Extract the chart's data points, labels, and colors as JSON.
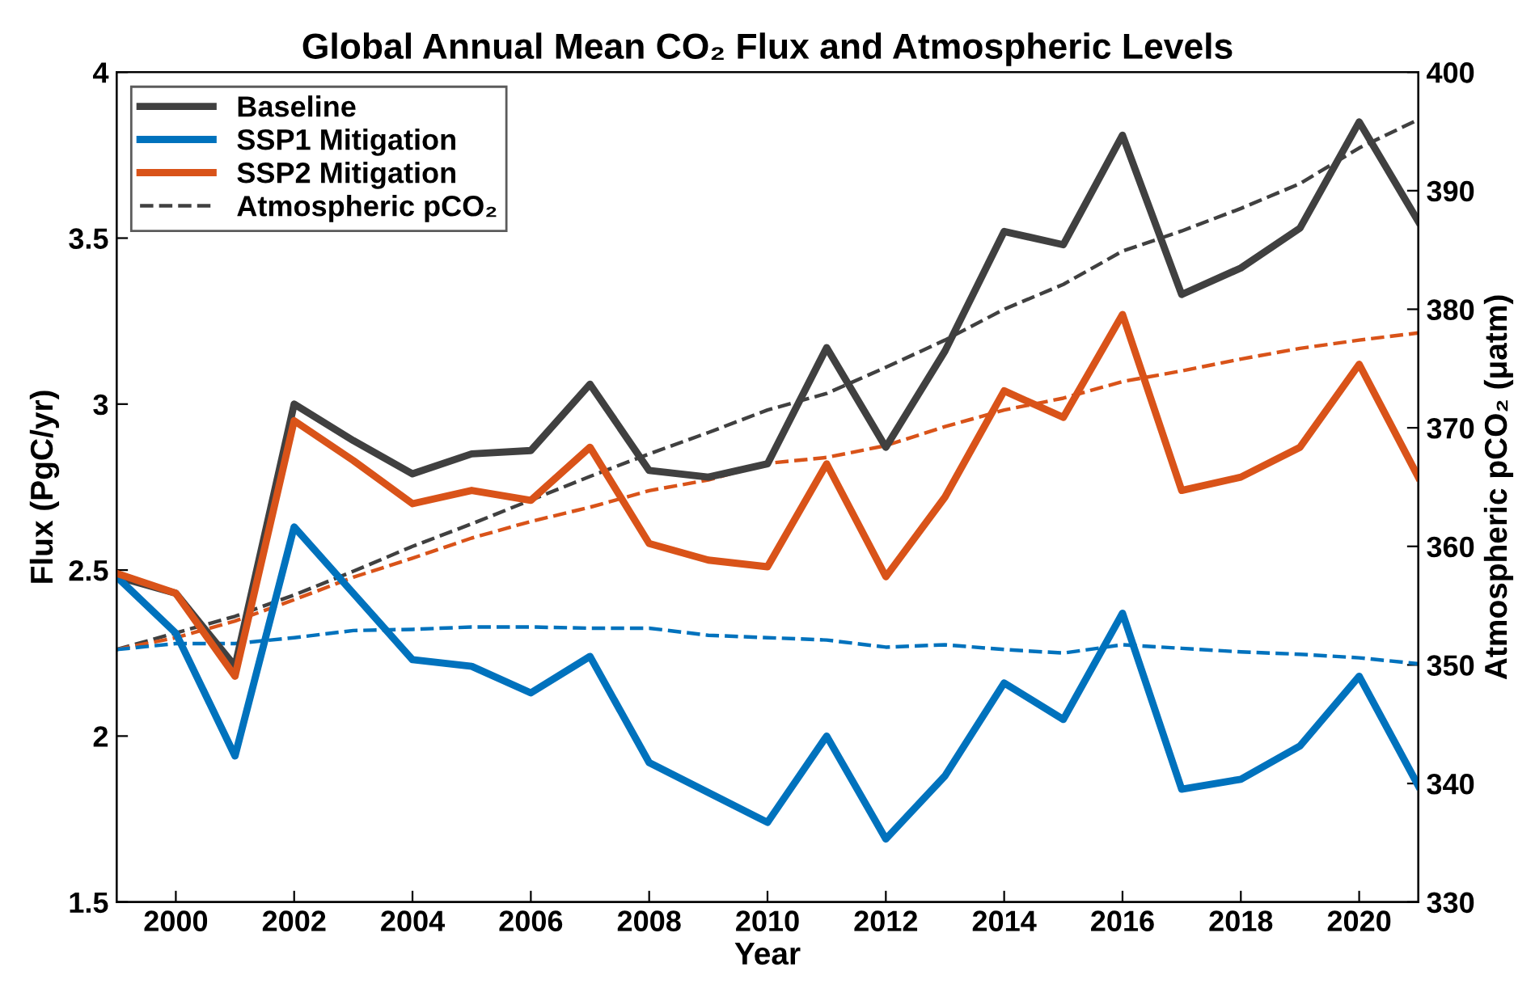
{
  "chart_data": {
    "type": "line",
    "title": "Global Annual Mean CO₂ Flux and Atmospheric Levels",
    "xlabel": "Year",
    "ylabel": "Flux (PgC/yr)",
    "y2label": "Atmospheric pCO₂ (μatm)",
    "x": [
      1999,
      2000,
      2001,
      2002,
      2003,
      2004,
      2005,
      2006,
      2007,
      2008,
      2009,
      2010,
      2011,
      2012,
      2013,
      2014,
      2015,
      2016,
      2017,
      2018,
      2019,
      2020,
      2021
    ],
    "xlim": [
      1999,
      2021
    ],
    "xticks": [
      2000,
      2002,
      2004,
      2006,
      2008,
      2010,
      2012,
      2014,
      2016,
      2018,
      2020
    ],
    "ylim": [
      1.5,
      4
    ],
    "yticks": [
      1.5,
      2,
      2.5,
      3,
      3.5,
      4
    ],
    "y2lim": [
      330,
      400
    ],
    "y2ticks": [
      330,
      340,
      350,
      360,
      370,
      380,
      390,
      400
    ],
    "grid": false,
    "legend": "top left",
    "series": [
      {
        "name": "Baseline",
        "color": "#404040",
        "line_style": "solid",
        "values": [
          2.48,
          2.43,
          2.21,
          3.0,
          2.89,
          2.79,
          2.85,
          2.86,
          3.06,
          2.8,
          2.78,
          2.82,
          3.17,
          2.87,
          3.16,
          3.52,
          3.48,
          3.81,
          3.33,
          3.41,
          3.53,
          3.85,
          3.55
        ]
      },
      {
        "name": "SSP1 Mitigation",
        "color": "#0072bd",
        "line_style": "solid",
        "values": [
          2.48,
          2.31,
          1.94,
          2.63,
          2.43,
          2.23,
          2.21,
          2.13,
          2.24,
          1.92,
          1.83,
          1.74,
          2.0,
          1.69,
          1.88,
          2.16,
          2.05,
          2.37,
          1.84,
          1.87,
          1.97,
          2.18,
          1.85
        ]
      },
      {
        "name": "SSP2 Mitigation",
        "color": "#d95319",
        "line_style": "solid",
        "values": [
          2.49,
          2.43,
          2.18,
          2.95,
          2.83,
          2.7,
          2.74,
          2.71,
          2.87,
          2.58,
          2.53,
          2.51,
          2.82,
          2.48,
          2.72,
          3.04,
          2.96,
          3.27,
          2.74,
          2.78,
          2.87,
          3.12,
          2.78
        ]
      },
      {
        "name": "Atmospheric pCO₂",
        "color": "#404040",
        "line_style": "dashed",
        "axis": "y2",
        "values": [
          351.3,
          352.7,
          354.1,
          355.9,
          357.9,
          360,
          361.9,
          363.9,
          365.9,
          367.8,
          369.6,
          371.5,
          372.9,
          375.1,
          377.4,
          380,
          382.1,
          384.9,
          386.6,
          388.5,
          390.6,
          393.6,
          396
        ]
      },
      {
        "color": "#d95319",
        "line_style": "dashed",
        "axis": "y2",
        "values": [
          351.3,
          352.3,
          353.7,
          355.5,
          357.4,
          359,
          360.7,
          362.1,
          363.3,
          364.7,
          365.6,
          367,
          367.5,
          368.5,
          370.1,
          371.5,
          372.5,
          373.9,
          374.8,
          375.8,
          376.7,
          377.4,
          378
        ]
      },
      {
        "color": "#0072bd",
        "line_style": "dashed",
        "axis": "y2",
        "values": [
          351.3,
          351.8,
          351.8,
          352.3,
          352.9,
          353,
          353.2,
          353.2,
          353.1,
          353.1,
          352.5,
          352.3,
          352.1,
          351.5,
          351.7,
          351.3,
          351,
          351.7,
          351.4,
          351.1,
          350.9,
          350.6,
          350.1
        ]
      }
    ]
  }
}
